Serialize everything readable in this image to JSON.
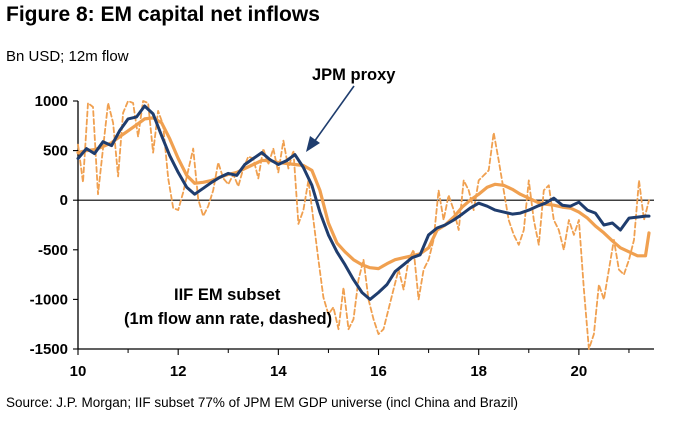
{
  "title": "Figure 8: EM capital net inflows",
  "subtitle": "Bn USD; 12m flow",
  "source": "Source: J.P. Morgan; IIF subset 77% of JPM EM GDP universe (incl China and Brazil)",
  "colors": {
    "jpm": "#1f3d6e",
    "iif": "#f0a050",
    "iif_dashed": "#f0a050",
    "arrow": "#1f3d6e"
  },
  "chart_data": {
    "type": "line",
    "xlim": [
      10,
      21.5
    ],
    "ylim": [
      -1500,
      1000
    ],
    "x_ticks": [
      {
        "value": 10,
        "label": "10"
      },
      {
        "value": 12,
        "label": "12"
      },
      {
        "value": 14,
        "label": "14"
      },
      {
        "value": 16,
        "label": "16"
      },
      {
        "value": 18,
        "label": "18"
      },
      {
        "value": 20,
        "label": "20"
      }
    ],
    "y_ticks": [
      {
        "value": 1000,
        "label": "1000"
      },
      {
        "value": 500,
        "label": "500"
      },
      {
        "value": 0,
        "label": "0"
      },
      {
        "value": -500,
        "label": "-500"
      },
      {
        "value": -1000,
        "label": "-1000"
      },
      {
        "value": -1500,
        "label": "-1500"
      }
    ],
    "grid": false,
    "annotations": [
      {
        "text": "JPM proxy",
        "series": "jpm"
      },
      {
        "line1": "IIF EM subset",
        "line2": "(1m flow ann rate, dashed)",
        "series": "iif_dashed"
      }
    ],
    "series": [
      {
        "id": "jpm",
        "style": "solid",
        "x": [
          10.0,
          10.17,
          10.33,
          10.5,
          10.67,
          10.83,
          11.0,
          11.17,
          11.33,
          11.5,
          11.67,
          11.83,
          12.0,
          12.17,
          12.33,
          12.5,
          12.67,
          12.83,
          13.0,
          13.17,
          13.33,
          13.5,
          13.67,
          13.83,
          14.0,
          14.17,
          14.33,
          14.5,
          14.67,
          14.83,
          15.0,
          15.17,
          15.33,
          15.5,
          15.67,
          15.83,
          16.0,
          16.17,
          16.33,
          16.5,
          16.67,
          16.83,
          17.0,
          17.17,
          17.33,
          17.5,
          17.67,
          17.83,
          18.0,
          18.17,
          18.33,
          18.5,
          18.67,
          18.83,
          19.0,
          19.17,
          19.33,
          19.5,
          19.67,
          19.83,
          20.0,
          20.17,
          20.33,
          20.5,
          20.67,
          20.83,
          21.0,
          21.17,
          21.33,
          21.4
        ],
        "y": [
          420,
          520,
          470,
          590,
          550,
          700,
          820,
          840,
          950,
          870,
          650,
          450,
          280,
          130,
          60,
          120,
          180,
          230,
          270,
          250,
          360,
          420,
          480,
          410,
          360,
          400,
          460,
          330,
          150,
          -120,
          -350,
          -520,
          -650,
          -800,
          -930,
          -1000,
          -930,
          -850,
          -720,
          -650,
          -580,
          -550,
          -350,
          -280,
          -250,
          -200,
          -140,
          -80,
          -30,
          -60,
          -100,
          -120,
          -140,
          -130,
          -100,
          -60,
          -30,
          20,
          -50,
          -60,
          -20,
          -100,
          -130,
          -250,
          -230,
          -300,
          -180,
          -170,
          -160,
          -160
        ]
      },
      {
        "id": "iif",
        "style": "solid",
        "x": [
          10.0,
          10.17,
          10.33,
          10.5,
          10.67,
          10.83,
          11.0,
          11.17,
          11.33,
          11.5,
          11.67,
          11.83,
          12.0,
          12.17,
          12.33,
          12.5,
          12.67,
          12.83,
          13.0,
          13.17,
          13.33,
          13.5,
          13.67,
          13.83,
          14.0,
          14.17,
          14.33,
          14.5,
          14.67,
          14.83,
          15.0,
          15.17,
          15.33,
          15.5,
          15.67,
          15.83,
          16.0,
          16.17,
          16.33,
          16.5,
          16.67,
          16.83,
          17.0,
          17.17,
          17.33,
          17.5,
          17.67,
          17.83,
          18.0,
          18.17,
          18.33,
          18.5,
          18.67,
          18.83,
          19.0,
          19.17,
          19.33,
          19.5,
          19.67,
          19.83,
          20.0,
          20.17,
          20.33,
          20.5,
          20.67,
          20.83,
          21.0,
          21.17,
          21.33,
          21.4
        ],
        "y": [
          480,
          500,
          510,
          540,
          580,
          640,
          700,
          760,
          820,
          830,
          780,
          620,
          420,
          250,
          170,
          180,
          200,
          230,
          260,
          280,
          320,
          360,
          400,
          400,
          380,
          370,
          360,
          350,
          300,
          100,
          -230,
          -430,
          -520,
          -600,
          -650,
          -680,
          -690,
          -640,
          -600,
          -580,
          -560,
          -540,
          -480,
          -300,
          -250,
          -170,
          -70,
          0,
          60,
          130,
          160,
          150,
          110,
          60,
          20,
          -20,
          -40,
          -50,
          -70,
          -80,
          -120,
          -180,
          -260,
          -330,
          -410,
          -480,
          -520,
          -560,
          -560,
          -330
        ]
      },
      {
        "id": "iif_dashed",
        "style": "dashed",
        "x": [
          10.0,
          10.1,
          10.2,
          10.3,
          10.4,
          10.5,
          10.6,
          10.7,
          10.8,
          10.9,
          11.0,
          11.1,
          11.2,
          11.3,
          11.4,
          11.5,
          11.6,
          11.7,
          11.8,
          11.9,
          12.0,
          12.1,
          12.2,
          12.3,
          12.4,
          12.5,
          12.6,
          12.7,
          12.8,
          12.9,
          13.0,
          13.1,
          13.2,
          13.3,
          13.4,
          13.5,
          13.6,
          13.7,
          13.8,
          13.9,
          14.0,
          14.1,
          14.2,
          14.3,
          14.4,
          14.5,
          14.6,
          14.7,
          14.8,
          14.9,
          15.0,
          15.1,
          15.2,
          15.3,
          15.4,
          15.5,
          15.6,
          15.7,
          15.8,
          15.9,
          16.0,
          16.1,
          16.2,
          16.3,
          16.4,
          16.5,
          16.6,
          16.7,
          16.8,
          16.9,
          17.0,
          17.1,
          17.2,
          17.3,
          17.4,
          17.5,
          17.6,
          17.7,
          17.8,
          17.9,
          18.0,
          18.1,
          18.2,
          18.3,
          18.4,
          18.5,
          18.6,
          18.7,
          18.8,
          18.9,
          19.0,
          19.1,
          19.2,
          19.3,
          19.4,
          19.5,
          19.6,
          19.7,
          19.8,
          19.9,
          20.0,
          20.1,
          20.2,
          20.3,
          20.4,
          20.5,
          20.6,
          20.7,
          20.8,
          20.9,
          21.0,
          21.1,
          21.2,
          21.3,
          21.4
        ],
        "y": [
          560,
          180,
          980,
          940,
          60,
          520,
          980,
          780,
          240,
          880,
          1000,
          980,
          640,
          1000,
          980,
          480,
          900,
          760,
          220,
          -80,
          -100,
          80,
          300,
          520,
          10,
          -160,
          -60,
          100,
          380,
          220,
          160,
          260,
          140,
          320,
          440,
          420,
          220,
          520,
          360,
          520,
          280,
          600,
          320,
          500,
          -240,
          -100,
          200,
          -200,
          -600,
          -980,
          -1150,
          -1080,
          -1300,
          -880,
          -1300,
          -1200,
          -800,
          -600,
          -1000,
          -1200,
          -1350,
          -1300,
          -1100,
          -900,
          -700,
          -900,
          -600,
          -500,
          -1000,
          -700,
          -600,
          -400,
          100,
          -200,
          50,
          -100,
          -300,
          200,
          100,
          -100,
          200,
          250,
          300,
          680,
          400,
          100,
          -200,
          -350,
          -450,
          -300,
          200,
          -200,
          -450,
          100,
          150,
          -200,
          -300,
          -500,
          -200,
          -350,
          -200,
          -900,
          -1500,
          -1350,
          -850,
          -1000,
          -700,
          -400,
          -700,
          -750,
          -600,
          -400,
          200,
          -200,
          0
        ]
      }
    ]
  }
}
